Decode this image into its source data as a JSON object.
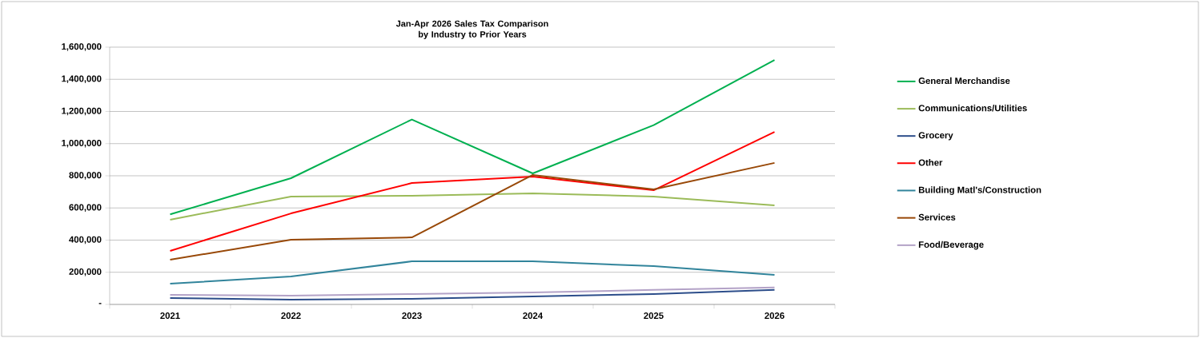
{
  "chart_data": {
    "type": "line",
    "title": "Jan-Apr 2026 Sales Tax Comparison by Industry to Prior Years",
    "categories": [
      "2021",
      "2022",
      "2023",
      "2024",
      "2025",
      "2026"
    ],
    "series": [
      {
        "name": "General Merchandise",
        "color": "#00b050",
        "values": [
          560000,
          785000,
          1150000,
          815000,
          1115000,
          1520000
        ]
      },
      {
        "name": "Communications/Utilities",
        "color": "#9bbb59",
        "values": [
          527000,
          671000,
          676000,
          690000,
          671000,
          616000
        ]
      },
      {
        "name": "Grocery",
        "color": "#2c4d8a",
        "values": [
          40000,
          30000,
          35000,
          50000,
          65000,
          90000
        ]
      },
      {
        "name": "Other",
        "color": "#ff0000",
        "values": [
          333000,
          566000,
          755000,
          795000,
          710000,
          1073000
        ]
      },
      {
        "name": "Building Matl's/Construction",
        "color": "#31849b",
        "values": [
          129000,
          174000,
          268000,
          268000,
          238000,
          184000
        ]
      },
      {
        "name": "Services",
        "color": "#984807",
        "values": [
          278000,
          402000,
          417000,
          805000,
          715000,
          880000
        ]
      },
      {
        "name": "Food/Beverage",
        "color": "#b3a2c7",
        "values": [
          60000,
          55000,
          65000,
          75000,
          90000,
          105000
        ]
      }
    ],
    "ylim": [
      0,
      1600000
    ],
    "yticks": [
      {
        "value": 0,
        "label": "-"
      },
      {
        "value": 200000,
        "label": "200,000"
      },
      {
        "value": 400000,
        "label": "400,000"
      },
      {
        "value": 600000,
        "label": "600,000"
      },
      {
        "value": 800000,
        "label": "800,000"
      },
      {
        "value": 1000000,
        "label": "1,000,000"
      },
      {
        "value": 1200000,
        "label": "1,200,000"
      },
      {
        "value": 1400000,
        "label": "1,400,000"
      },
      {
        "value": 1600000,
        "label": "1,600,000"
      }
    ],
    "grid": "y",
    "legend": "right",
    "marker": "none",
    "line_style": "solid"
  }
}
